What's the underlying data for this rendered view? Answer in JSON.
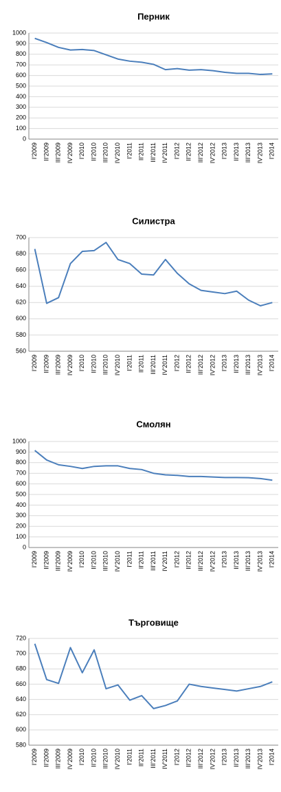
{
  "chart_data": [
    {
      "type": "line",
      "title": "Перник",
      "categories": [
        "I'2009",
        "II'2009",
        "III'2009",
        "IV'2009",
        "I'2010",
        "II'2010",
        "III'2010",
        "IV'2010",
        "I'2011",
        "II'2011",
        "III'2011",
        "IV'2011",
        "I'2012",
        "II'2012",
        "III'2012",
        "IV'2012",
        "I'2013",
        "II'2013",
        "III'2013",
        "IV'2013",
        "I'2014"
      ],
      "series": [
        {
          "name": "Перник",
          "color": "#4a7ebb",
          "values": [
            950,
            910,
            865,
            840,
            845,
            835,
            795,
            755,
            735,
            725,
            705,
            655,
            665,
            650,
            655,
            645,
            630,
            620,
            620,
            610,
            615
          ]
        }
      ],
      "ylim": [
        0,
        1000
      ],
      "yticks": [
        0,
        100,
        200,
        300,
        400,
        500,
        600,
        700,
        800,
        900,
        1000
      ],
      "grid": true
    },
    {
      "type": "line",
      "title": "Силистра",
      "categories": [
        "I'2009",
        "II'2009",
        "III'2009",
        "IV'2009",
        "I'2010",
        "II'2010",
        "III'2010",
        "IV'2010",
        "I'2011",
        "II'2011",
        "III'2011",
        "IV'2011",
        "I'2012",
        "II'2012",
        "III'2012",
        "IV'2012",
        "I'2013",
        "II'2013",
        "III'2013",
        "IV'2013",
        "I'2014"
      ],
      "series": [
        {
          "name": "Силистра",
          "color": "#4a7ebb",
          "values": [
            686,
            619,
            626,
            668,
            683,
            684,
            694,
            673,
            668,
            655,
            654,
            673,
            656,
            643,
            635,
            633,
            631,
            634,
            623,
            616,
            620
          ]
        }
      ],
      "ylim": [
        560,
        700
      ],
      "yticks": [
        560,
        580,
        600,
        620,
        640,
        660,
        680,
        700
      ],
      "grid": true
    },
    {
      "type": "line",
      "title": "Смолян",
      "categories": [
        "I'2009",
        "II'2009",
        "III'2009",
        "IV'2009",
        "I'2010",
        "II'2010",
        "III'2010",
        "IV'2010",
        "I'2011",
        "II'2011",
        "III'2011",
        "IV'2011",
        "I'2012",
        "II'2012",
        "III'2012",
        "IV'2012",
        "I'2013",
        "II'2013",
        "III'2013",
        "IV'2013",
        "I'2014"
      ],
      "series": [
        {
          "name": "Смолян",
          "color": "#4a7ebb",
          "values": [
            915,
            825,
            780,
            765,
            745,
            765,
            770,
            770,
            745,
            735,
            700,
            685,
            680,
            670,
            670,
            665,
            660,
            660,
            658,
            650,
            635
          ]
        }
      ],
      "ylim": [
        0,
        1000
      ],
      "yticks": [
        0,
        100,
        200,
        300,
        400,
        500,
        600,
        700,
        800,
        900,
        1000
      ],
      "grid": true
    },
    {
      "type": "line",
      "title": "Търговище",
      "categories": [
        "I'2009",
        "II'2009",
        "III'2009",
        "IV'2009",
        "I'2010",
        "II'2010",
        "III'2010",
        "IV'2010",
        "I'2011",
        "II'2011",
        "III'2011",
        "IV'2011",
        "I'2012",
        "II'2012",
        "III'2012",
        "IV'2012",
        "I'2013",
        "II'2013",
        "III'2013",
        "IV'2013",
        "I'2014"
      ],
      "series": [
        {
          "name": "Търговище",
          "color": "#4a7ebb",
          "values": [
            713,
            666,
            661,
            708,
            675,
            705,
            654,
            659,
            639,
            645,
            628,
            632,
            638,
            660,
            657,
            655,
            653,
            651,
            654,
            657,
            663
          ]
        }
      ],
      "ylim": [
        580,
        720
      ],
      "yticks": [
        580,
        600,
        620,
        640,
        660,
        680,
        700,
        720
      ],
      "grid": true
    }
  ]
}
